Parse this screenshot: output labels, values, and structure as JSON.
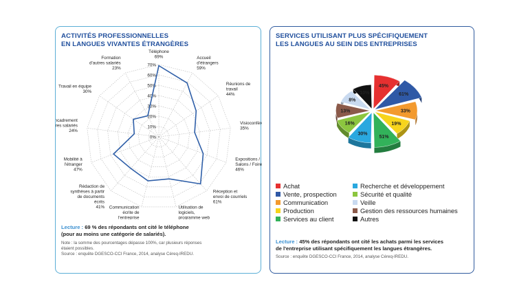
{
  "chart_data": [
    {
      "type": "radar",
      "title": [
        "ACTIVITÉS PROFESSIONNELLES",
        "EN LANGUES VIVANTES ÉTRANGÈRES"
      ],
      "ticks": [
        "0%",
        "10%",
        "20%",
        "30%",
        "40%",
        "50%",
        "60%",
        "70%"
      ],
      "rmax": 70,
      "categories": [
        {
          "label": [
            "Téléphone",
            "69%"
          ],
          "value": 69
        },
        {
          "label": [
            "Accueil",
            "d'étrangers",
            "59%"
          ],
          "value": 59
        },
        {
          "label": [
            "Réunions de",
            "travail",
            "44%"
          ],
          "value": 44
        },
        {
          "label": [
            "Visioconférences",
            "35%"
          ],
          "value": 35
        },
        {
          "label": [
            "Expositions /",
            "Salons / Foires",
            "46%"
          ],
          "value": 46
        },
        {
          "label": [
            "Réception et",
            "envoi de courriels",
            "61%"
          ],
          "value": 61
        },
        {
          "label": [
            "Utilisation de",
            "logiciels,",
            "programme web",
            "42%"
          ],
          "value": 42
        },
        {
          "label": [
            "Communication",
            "écrite de",
            "l'entreprise",
            "44%"
          ],
          "value": 44
        },
        {
          "label": [
            "Rédaction de",
            "synthèses à partir",
            "de documents",
            "écrits",
            "41%"
          ],
          "value": 41
        },
        {
          "label": [
            "Mobilité à",
            "l'étranger",
            "47%"
          ],
          "value": 47
        },
        {
          "label": [
            "Encadrement",
            "d'autres salariés",
            "24%"
          ],
          "value": 24
        },
        {
          "label": [
            "Travail en équipe",
            "30%"
          ],
          "value": 30
        },
        {
          "label": [
            "Formation",
            "d'autres salariés",
            "23%"
          ],
          "value": 23
        }
      ],
      "series_color": "#2f5fa8",
      "lecture": {
        "label": "Lecture :",
        "text": " 69 % des répondants ont cité le téléphone",
        "text2": "(pour au moins une catégorie de salariés)."
      },
      "note": [
        "Note : la somme des pourcentages dépasse 100%, car plusieurs réponses",
        "étaient possibles."
      ],
      "source": "Source : enquête DGESCO-CCI France, 2014, analyse Céreq-IREDU."
    },
    {
      "type": "pie",
      "title": [
        "SERVICES UTILISANT PLUS SPÉCIFIQUEMENT",
        "LES LANGUES AU SEIN DES ENTREPRISES"
      ],
      "slices": [
        {
          "name": "Achat",
          "label": "45%",
          "value": 45,
          "color": "#e63030"
        },
        {
          "name": "Vente, prospection",
          "label": "61%",
          "value": 61,
          "color": "#2f59a6"
        },
        {
          "name": "Communication",
          "label": "33%",
          "value": 33,
          "color": "#f39a2e"
        },
        {
          "name": "Production",
          "label": "19%",
          "value": 19,
          "color": "#f7d41c"
        },
        {
          "name": "Services au client",
          "label": "51%",
          "value": 51,
          "color": "#32b25a"
        },
        {
          "name": "Recherche et développement",
          "label": "30%",
          "value": 30,
          "color": "#2aa8df"
        },
        {
          "name": "Sécurité et qualité",
          "label": "16%",
          "value": 16,
          "color": "#8cc63f"
        },
        {
          "name": "Gestion des ressources humaines",
          "label": "13%",
          "value": 13,
          "color": "#8b5a4a"
        },
        {
          "name": "Veille",
          "label": "8%",
          "value": 8,
          "color": "#c9daf0"
        },
        {
          "name": "Autres",
          "label": "10%",
          "value": 10,
          "color": "#111111"
        }
      ],
      "legend_order": [
        "Achat",
        "Recherche et développement",
        "Vente, prospection",
        "Sécurité et qualité",
        "Communication",
        "Veille",
        "Production",
        "Gestion des ressources humaines",
        "Services au client",
        "Autres"
      ],
      "lecture": {
        "label": "Lecture :",
        "text": " 45% des répondants ont cité les achats parmi les services",
        "text2": "de l'entreprise utilisant spécifiquement les langues étrangères."
      },
      "source": "Source : enquête DGESCO-CCI France, 2014, analyse Céreq-IREDU."
    }
  ]
}
